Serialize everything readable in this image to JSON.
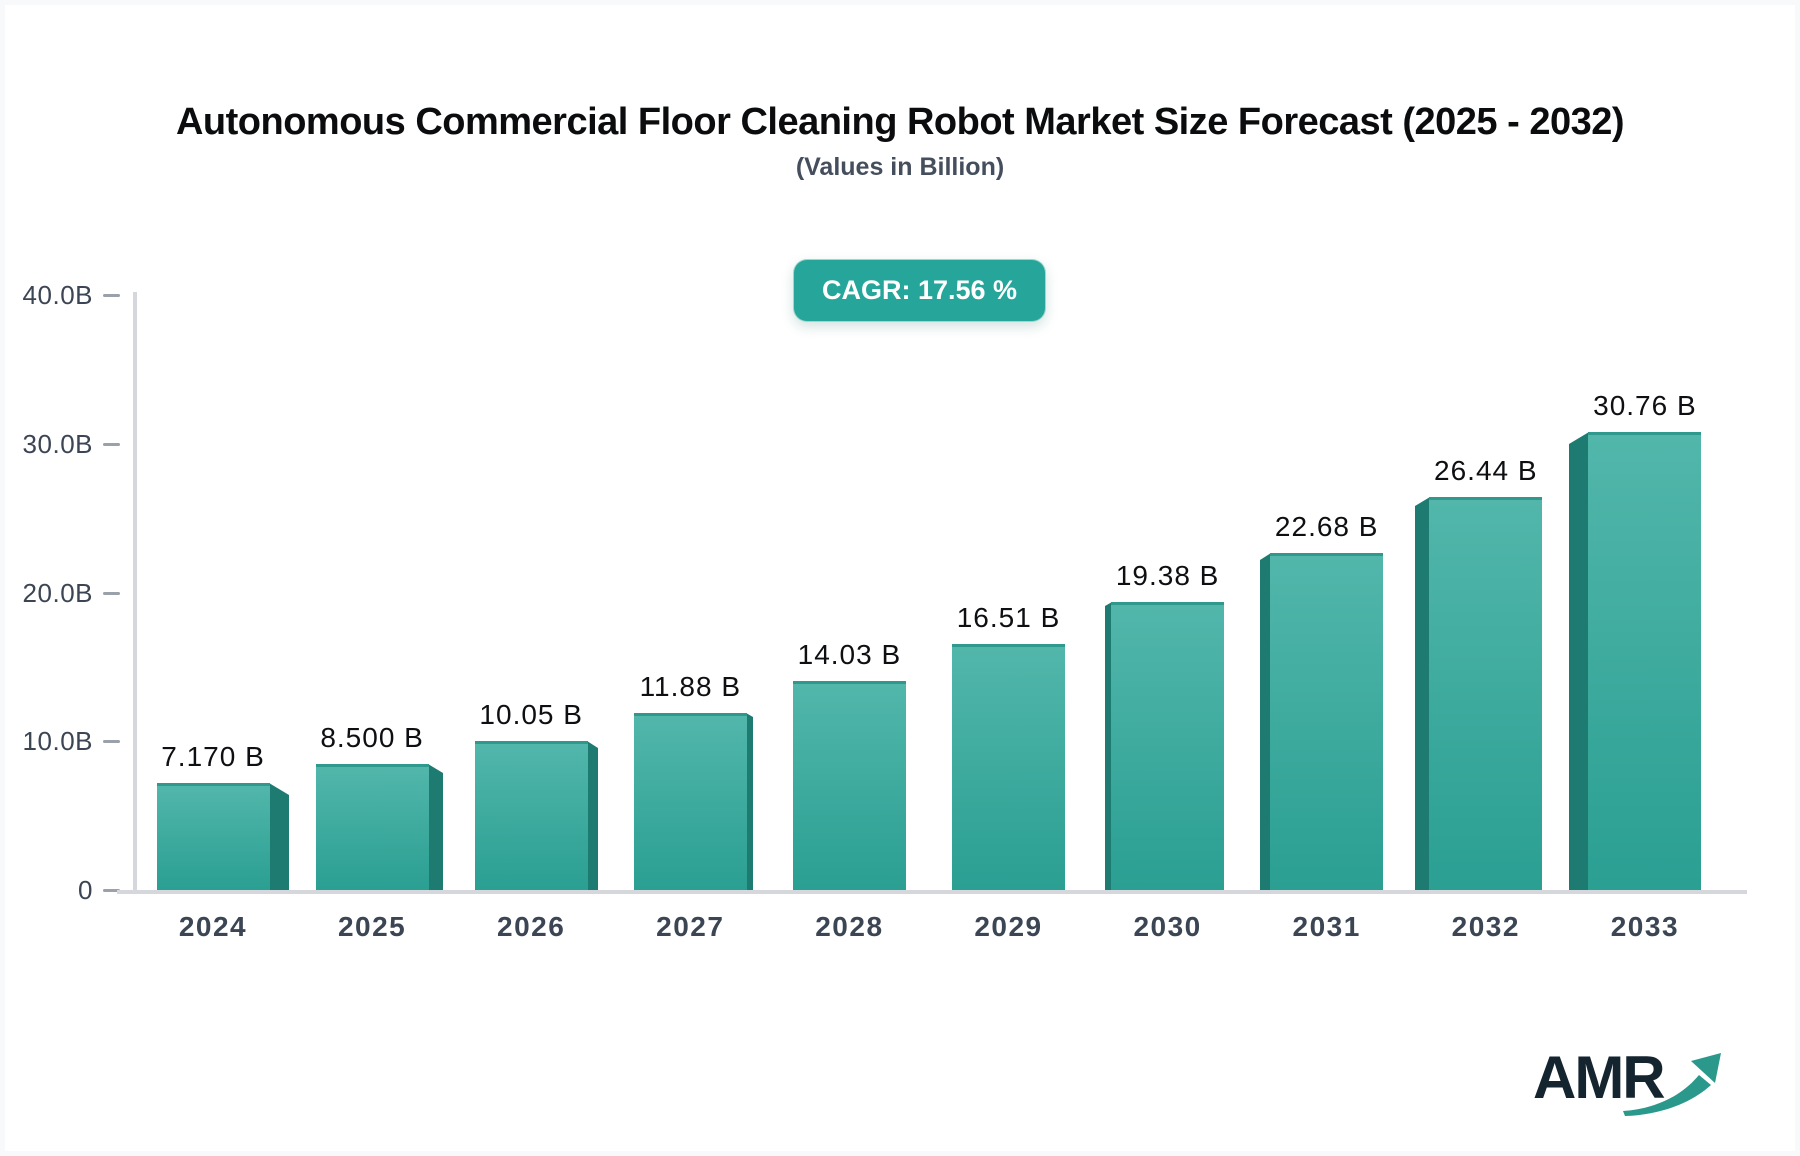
{
  "header": {
    "title": "Autonomous Commercial Floor Cleaning Robot Market Size Forecast (2025 - 2032)",
    "subtitle": "(Values in Billion)"
  },
  "badge": {
    "label": "CAGR: 17.56 %"
  },
  "logo": {
    "text": "AMR"
  },
  "colors": {
    "accent_teal": "#27a79a",
    "badge_background": "#26a69a",
    "bar_front_top": "#52b6ab",
    "bar_front_bottom": "#2a9f92",
    "bar_side": "#1d7b71",
    "bar_top_edge": "#2f998d",
    "axis_line": "#d5d7dc",
    "tick_dash": "#9aa1aa",
    "axis_text": "#3b4553",
    "value_text": "#0d0f12",
    "logo_text": "#152530",
    "logo_arrow": "#2b988c"
  },
  "chart_data": {
    "type": "bar",
    "title": "Autonomous Commercial Floor Cleaning Robot Market Size Forecast (2025 - 2032)",
    "subtitle": "(Values in Billion)",
    "annotation": "CAGR: 17.56 %",
    "categories": [
      "2024",
      "2025",
      "2026",
      "2027",
      "2028",
      "2029",
      "2030",
      "2031",
      "2032",
      "2033"
    ],
    "values": [
      7.17,
      8.5,
      10.05,
      11.88,
      14.03,
      16.51,
      19.38,
      22.68,
      26.44,
      30.76
    ],
    "value_labels": [
      "7.170 B",
      "8.500 B",
      "10.05 B",
      "11.88 B",
      "14.03 B",
      "16.51 B",
      "19.38 B",
      "22.68 B",
      "26.44 B",
      "30.76 B"
    ],
    "xlabel": "",
    "ylabel": "",
    "ylim": [
      0,
      40
    ],
    "y_ticks": [
      {
        "value": 0,
        "label": "0"
      },
      {
        "value": 10,
        "label": "10.0B"
      },
      {
        "value": 20,
        "label": "20.0B"
      },
      {
        "value": 30,
        "label": "30.0B"
      },
      {
        "value": 40,
        "label": "40.0B"
      }
    ],
    "grid": false,
    "legend": false,
    "bar_style": "3d-teal"
  }
}
